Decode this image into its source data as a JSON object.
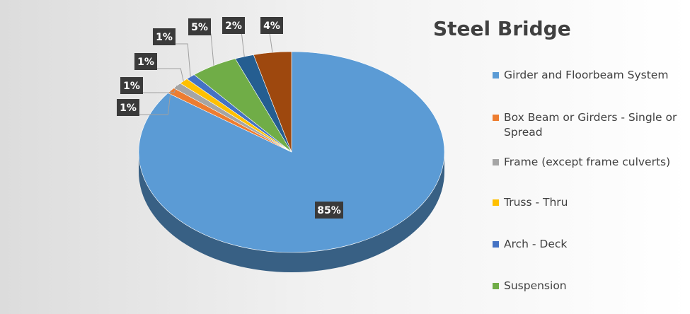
{
  "chart_data": {
    "type": "pie",
    "title": "Steel Bridge",
    "legend_position": "right",
    "slices": [
      {
        "name": "Girder and Floorbeam System",
        "value": 85,
        "label": "85%",
        "color": "#5b9bd5"
      },
      {
        "name": "Box Beam or Girders - Single or Spread",
        "value": 1,
        "label": "1%",
        "color": "#ed7d31"
      },
      {
        "name": "Frame (except frame culverts)",
        "value": 1,
        "label": "1%",
        "color": "#a5a5a5"
      },
      {
        "name": "Truss - Thru",
        "value": 1,
        "label": "1%",
        "color": "#ffc000"
      },
      {
        "name": "Arch - Deck",
        "value": 1,
        "label": "1%",
        "color": "#4472c4"
      },
      {
        "name": "Suspension",
        "value": 5,
        "label": "5%",
        "color": "#70ad47"
      },
      {
        "name": "",
        "value": 2,
        "label": "2%",
        "color": "#255e91"
      },
      {
        "name": "",
        "value": 4,
        "label": "4%",
        "color": "#9e480e"
      }
    ]
  }
}
